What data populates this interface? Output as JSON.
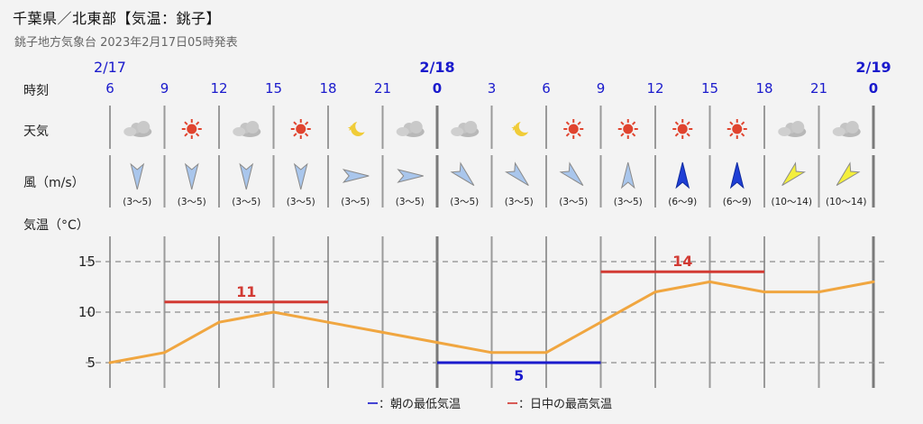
{
  "header": {
    "title": "千葉県／北東部【気温：銚子】",
    "subtitle": "銚子地方気象台 2023年2月17日05時発表"
  },
  "row_labels": {
    "time": "時刻",
    "weather": "天気",
    "wind": "風（m/s）",
    "temperature": "気温（°C）"
  },
  "dates": [
    {
      "label": "2/17",
      "col": 0,
      "bold": false
    },
    {
      "label": "2/18",
      "col": 6,
      "bold": true
    },
    {
      "label": "2/19",
      "col": 14,
      "bold": true
    }
  ],
  "times": [
    "6",
    "9",
    "12",
    "15",
    "18",
    "21",
    "0",
    "3",
    "6",
    "9",
    "12",
    "15",
    "18",
    "21",
    "0"
  ],
  "weather": [
    "cloudy",
    "sunny",
    "cloudy",
    "sunny",
    "clear-night",
    "cloudy",
    "cloudy",
    "clear-night",
    "sunny",
    "sunny",
    "sunny",
    "sunny",
    "cloudy",
    "cloudy"
  ],
  "wind": [
    {
      "dir": "S",
      "speed": "(3〜5)",
      "level": "light"
    },
    {
      "dir": "S",
      "speed": "(3〜5)",
      "level": "light"
    },
    {
      "dir": "S",
      "speed": "(3〜5)",
      "level": "light"
    },
    {
      "dir": "S",
      "speed": "(3〜5)",
      "level": "light"
    },
    {
      "dir": "E",
      "speed": "(3〜5)",
      "level": "light"
    },
    {
      "dir": "E",
      "speed": "(3〜5)",
      "level": "light"
    },
    {
      "dir": "SE",
      "speed": "(3〜5)",
      "level": "light"
    },
    {
      "dir": "SE",
      "speed": "(3〜5)",
      "level": "light"
    },
    {
      "dir": "SE",
      "speed": "(3〜5)",
      "level": "light"
    },
    {
      "dir": "N",
      "speed": "(3〜5)",
      "level": "light"
    },
    {
      "dir": "N",
      "speed": "(6〜9)",
      "level": "moderate"
    },
    {
      "dir": "N",
      "speed": "(6〜9)",
      "level": "moderate"
    },
    {
      "dir": "SW",
      "speed": "(10〜14)",
      "level": "strong"
    },
    {
      "dir": "SW",
      "speed": "(10〜14)",
      "level": "strong"
    }
  ],
  "legend": {
    "min_label": "ー：朝の最低気温",
    "max_label": "ー：日中の最高気温"
  },
  "colors": {
    "date": "#1a1acc",
    "line": "#f0a640",
    "max": "#d23a33",
    "min": "#1a1acc",
    "wind_light": "#a9c6ec",
    "wind_moderate": "#1f3fd6",
    "wind_strong": "#f4ef3c"
  },
  "chart_data": {
    "type": "line",
    "x": [
      "6",
      "9",
      "12",
      "15",
      "18",
      "21",
      "0",
      "3",
      "6",
      "9",
      "12",
      "15",
      "18",
      "21",
      "0"
    ],
    "series": [
      {
        "values": [
          5,
          6,
          9,
          10,
          9,
          8,
          7,
          6,
          6,
          9,
          12,
          13,
          12,
          12,
          13
        ]
      }
    ],
    "yticks": [
      5,
      10,
      15
    ],
    "ylim": [
      2.5,
      17.5
    ],
    "grid": true,
    "annotations": [
      {
        "kind": "max",
        "label": "11",
        "value": 11,
        "from_col": 1,
        "to_col": 4
      },
      {
        "kind": "max",
        "label": "14",
        "value": 14,
        "from_col": 9,
        "to_col": 12
      },
      {
        "kind": "min",
        "label": "5",
        "value": 5,
        "from_col": 6,
        "to_col": 9
      }
    ]
  }
}
